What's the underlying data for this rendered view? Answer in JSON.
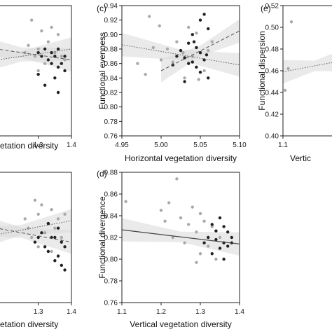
{
  "chart_data": [
    {
      "id": "b",
      "type": "scatter",
      "panel_label": "",
      "xlabel": "etation diversity",
      "ylabel": "",
      "xlim": [
        1.1,
        1.4
      ],
      "ylim": [
        0.76,
        0.94
      ],
      "xticks": [
        "1.3",
        "1.4"
      ],
      "yticks": [],
      "series": [
        {
          "color": "#a9a9a9",
          "points": [
            [
              1.28,
              0.92
            ],
            [
              1.31,
              0.905
            ],
            [
              1.34,
              0.91
            ],
            [
              1.36,
              0.9
            ],
            [
              1.33,
              0.89
            ],
            [
              1.27,
              0.885
            ],
            [
              1.3,
              0.88
            ],
            [
              1.35,
              0.875
            ],
            [
              1.37,
              0.87
            ],
            [
              1.29,
              0.87
            ],
            [
              1.32,
              0.86
            ],
            [
              1.26,
              0.875
            ],
            [
              1.38,
              0.865
            ],
            [
              1.3,
              0.85
            ]
          ]
        },
        {
          "color": "#222222",
          "points": [
            [
              1.32,
              0.88
            ],
            [
              1.34,
              0.875
            ],
            [
              1.36,
              0.88
            ],
            [
              1.3,
              0.875
            ],
            [
              1.35,
              0.87
            ],
            [
              1.37,
              0.86
            ],
            [
              1.33,
              0.865
            ],
            [
              1.31,
              0.87
            ],
            [
              1.36,
              0.855
            ],
            [
              1.38,
              0.87
            ],
            [
              1.34,
              0.86
            ],
            [
              1.35,
              0.84
            ],
            [
              1.32,
              0.83
            ],
            [
              1.36,
              0.82
            ],
            [
              1.38,
              0.85
            ],
            [
              1.3,
              0.845
            ]
          ]
        }
      ],
      "trends": [
        {
          "style": "dotted",
          "y_at_xmin": 0.86,
          "y_at_xmax": 0.88
        },
        {
          "style": "dashed",
          "y_at_xmin": 0.885,
          "y_at_xmax": 0.865
        }
      ]
    },
    {
      "id": "c",
      "type": "scatter",
      "panel_label": "(c)",
      "xlabel": "Horizontal vegetation diversity",
      "ylabel": "Functional evenness",
      "xlim": [
        4.95,
        5.1
      ],
      "ylim": [
        0.76,
        0.94
      ],
      "xticks": [
        "4.95",
        "5.00",
        "5.05",
        "5.10"
      ],
      "yticks": [
        "0.76",
        "0.78",
        "0.80",
        "0.82",
        "0.84",
        "0.86",
        "0.88",
        "0.90",
        "0.92",
        "0.94"
      ],
      "series": [
        {
          "color": "#a9a9a9",
          "points": [
            [
              4.985,
              0.925
            ],
            [
              4.998,
              0.912
            ],
            [
              5.045,
              0.902
            ],
            [
              5.035,
              0.91
            ],
            [
              5.02,
              0.89
            ],
            [
              4.99,
              0.882
            ],
            [
              5.008,
              0.88
            ],
            [
              5.06,
              0.878
            ],
            [
              5.0,
              0.865
            ],
            [
              4.98,
              0.845
            ],
            [
              5.015,
              0.862
            ],
            [
              5.04,
              0.87
            ],
            [
              5.055,
              0.85
            ],
            [
              5.03,
              0.84
            ],
            [
              5.048,
              0.838
            ],
            [
              5.028,
              0.875
            ],
            [
              4.97,
              0.86
            ],
            [
              5.065,
              0.89
            ]
          ]
        },
        {
          "color": "#222222",
          "points": [
            [
              5.055,
              0.928
            ],
            [
              5.05,
              0.92
            ],
            [
              5.06,
              0.908
            ],
            [
              5.04,
              0.9
            ],
            [
              5.035,
              0.888
            ],
            [
              5.045,
              0.882
            ],
            [
              5.025,
              0.878
            ],
            [
              5.05,
              0.875
            ],
            [
              5.03,
              0.868
            ],
            [
              5.04,
              0.862
            ],
            [
              5.02,
              0.87
            ],
            [
              5.055,
              0.865
            ],
            [
              5.045,
              0.855
            ],
            [
              5.06,
              0.84
            ],
            [
              5.035,
              0.86
            ],
            [
              5.05,
              0.848
            ],
            [
              5.015,
              0.858
            ],
            [
              5.03,
              0.835
            ],
            [
              5.058,
              0.872
            ],
            [
              5.042,
              0.89
            ]
          ]
        }
      ],
      "trends": [
        {
          "style": "dotted",
          "y_at_xmin": 0.886,
          "y_at_xmax": 0.858
        },
        {
          "style": "dashed",
          "y_at_xmin": 0.85,
          "y_at_xmax": 0.905,
          "x_from": 5.0
        }
      ]
    },
    {
      "id": "e",
      "type": "scatter",
      "panel_label": "(e)",
      "xlabel": "Vertic",
      "ylabel": "Functional dispersion",
      "xlim": [
        1.1,
        1.4
      ],
      "ylim": [
        0.4,
        0.52
      ],
      "xticks": [
        "1.1"
      ],
      "yticks": [
        "0.40",
        "0.42",
        "0.44",
        "0.46",
        "0.48",
        "0.50",
        "0.52"
      ],
      "series": [
        {
          "color": "#a9a9a9",
          "points": [
            [
              1.11,
              0.442
            ],
            [
              1.125,
              0.462
            ],
            [
              1.14,
              0.505
            ]
          ]
        }
      ],
      "trends": [
        {
          "style": "dotted",
          "y_at_xmin": 0.459,
          "y_at_xmax": 0.47
        }
      ]
    },
    {
      "id": "b2",
      "type": "scatter",
      "panel_label": "",
      "xlabel": "etation diversity",
      "ylabel": "",
      "xlim": [
        1.1,
        1.4
      ],
      "ylim": [
        0.76,
        0.9
      ],
      "xticks": [
        "1.3",
        "1.4"
      ],
      "yticks": [],
      "series": [
        {
          "color": "#a9a9a9",
          "points": [
            [
              1.29,
              0.87
            ],
            [
              1.31,
              0.865
            ],
            [
              1.34,
              0.86
            ],
            [
              1.36,
              0.85
            ],
            [
              1.3,
              0.855
            ],
            [
              1.33,
              0.845
            ],
            [
              1.27,
              0.84
            ],
            [
              1.35,
              0.84
            ],
            [
              1.28,
              0.83
            ],
            [
              1.32,
              0.835
            ],
            [
              1.37,
              0.83
            ],
            [
              1.26,
              0.85
            ],
            [
              1.3,
              0.82
            ],
            [
              1.34,
              0.815
            ],
            [
              1.38,
              0.855
            ]
          ]
        },
        {
          "color": "#222222",
          "points": [
            [
              1.33,
              0.845
            ],
            [
              1.36,
              0.84
            ],
            [
              1.31,
              0.835
            ],
            [
              1.35,
              0.83
            ],
            [
              1.37,
              0.825
            ],
            [
              1.32,
              0.82
            ],
            [
              1.34,
              0.83
            ],
            [
              1.38,
              0.82
            ],
            [
              1.36,
              0.81
            ],
            [
              1.3,
              0.83
            ],
            [
              1.35,
              0.805
            ],
            [
              1.37,
              0.8
            ],
            [
              1.33,
              0.815
            ],
            [
              1.38,
              0.795
            ],
            [
              1.29,
              0.825
            ]
          ]
        }
      ],
      "trends": [
        {
          "style": "dotted",
          "y_at_xmin": 0.828,
          "y_at_xmax": 0.848
        },
        {
          "style": "dashed",
          "y_at_xmin": 0.845,
          "y_at_xmax": 0.825
        }
      ]
    },
    {
      "id": "d",
      "type": "scatter",
      "panel_label": "(d)",
      "xlabel": "Vertical vegetation diversity",
      "ylabel": "Functional divergence",
      "xlim": [
        1.1,
        1.4
      ],
      "ylim": [
        0.76,
        0.88
      ],
      "xticks": [
        "1.1",
        "1.2",
        "1.3",
        "1.4"
      ],
      "yticks": [
        "0.76",
        "0.78",
        "0.80",
        "0.82",
        "0.84",
        "0.86",
        "0.88"
      ],
      "series": [
        {
          "color": "#a9a9a9",
          "points": [
            [
              1.11,
              0.853
            ],
            [
              1.24,
              0.874
            ],
            [
              1.22,
              0.852
            ],
            [
              1.2,
              0.845
            ],
            [
              1.28,
              0.848
            ],
            [
              1.3,
              0.842
            ],
            [
              1.25,
              0.838
            ],
            [
              1.27,
              0.832
            ],
            [
              1.33,
              0.83
            ],
            [
              1.21,
              0.835
            ],
            [
              1.29,
              0.825
            ],
            [
              1.31,
              0.835
            ],
            [
              1.35,
              0.82
            ],
            [
              1.32,
              0.812
            ],
            [
              1.3,
              0.805
            ],
            [
              1.34,
              0.8
            ],
            [
              1.29,
              0.797
            ],
            [
              1.26,
              0.815
            ],
            [
              1.23,
              0.82
            ]
          ]
        },
        {
          "color": "#222222",
          "points": [
            [
              1.35,
              0.838
            ],
            [
              1.33,
              0.832
            ],
            [
              1.36,
              0.83
            ],
            [
              1.37,
              0.825
            ],
            [
              1.38,
              0.82
            ],
            [
              1.34,
              0.818
            ],
            [
              1.36,
              0.815
            ],
            [
              1.32,
              0.82
            ],
            [
              1.35,
              0.81
            ],
            [
              1.37,
              0.812
            ],
            [
              1.33,
              0.805
            ],
            [
              1.38,
              0.815
            ],
            [
              1.36,
              0.8
            ],
            [
              1.31,
              0.815
            ],
            [
              1.34,
              0.826
            ]
          ]
        }
      ],
      "trends": [
        {
          "style": "solid",
          "y_at_xmin": 0.827,
          "y_at_xmax": 0.814
        }
      ]
    }
  ]
}
